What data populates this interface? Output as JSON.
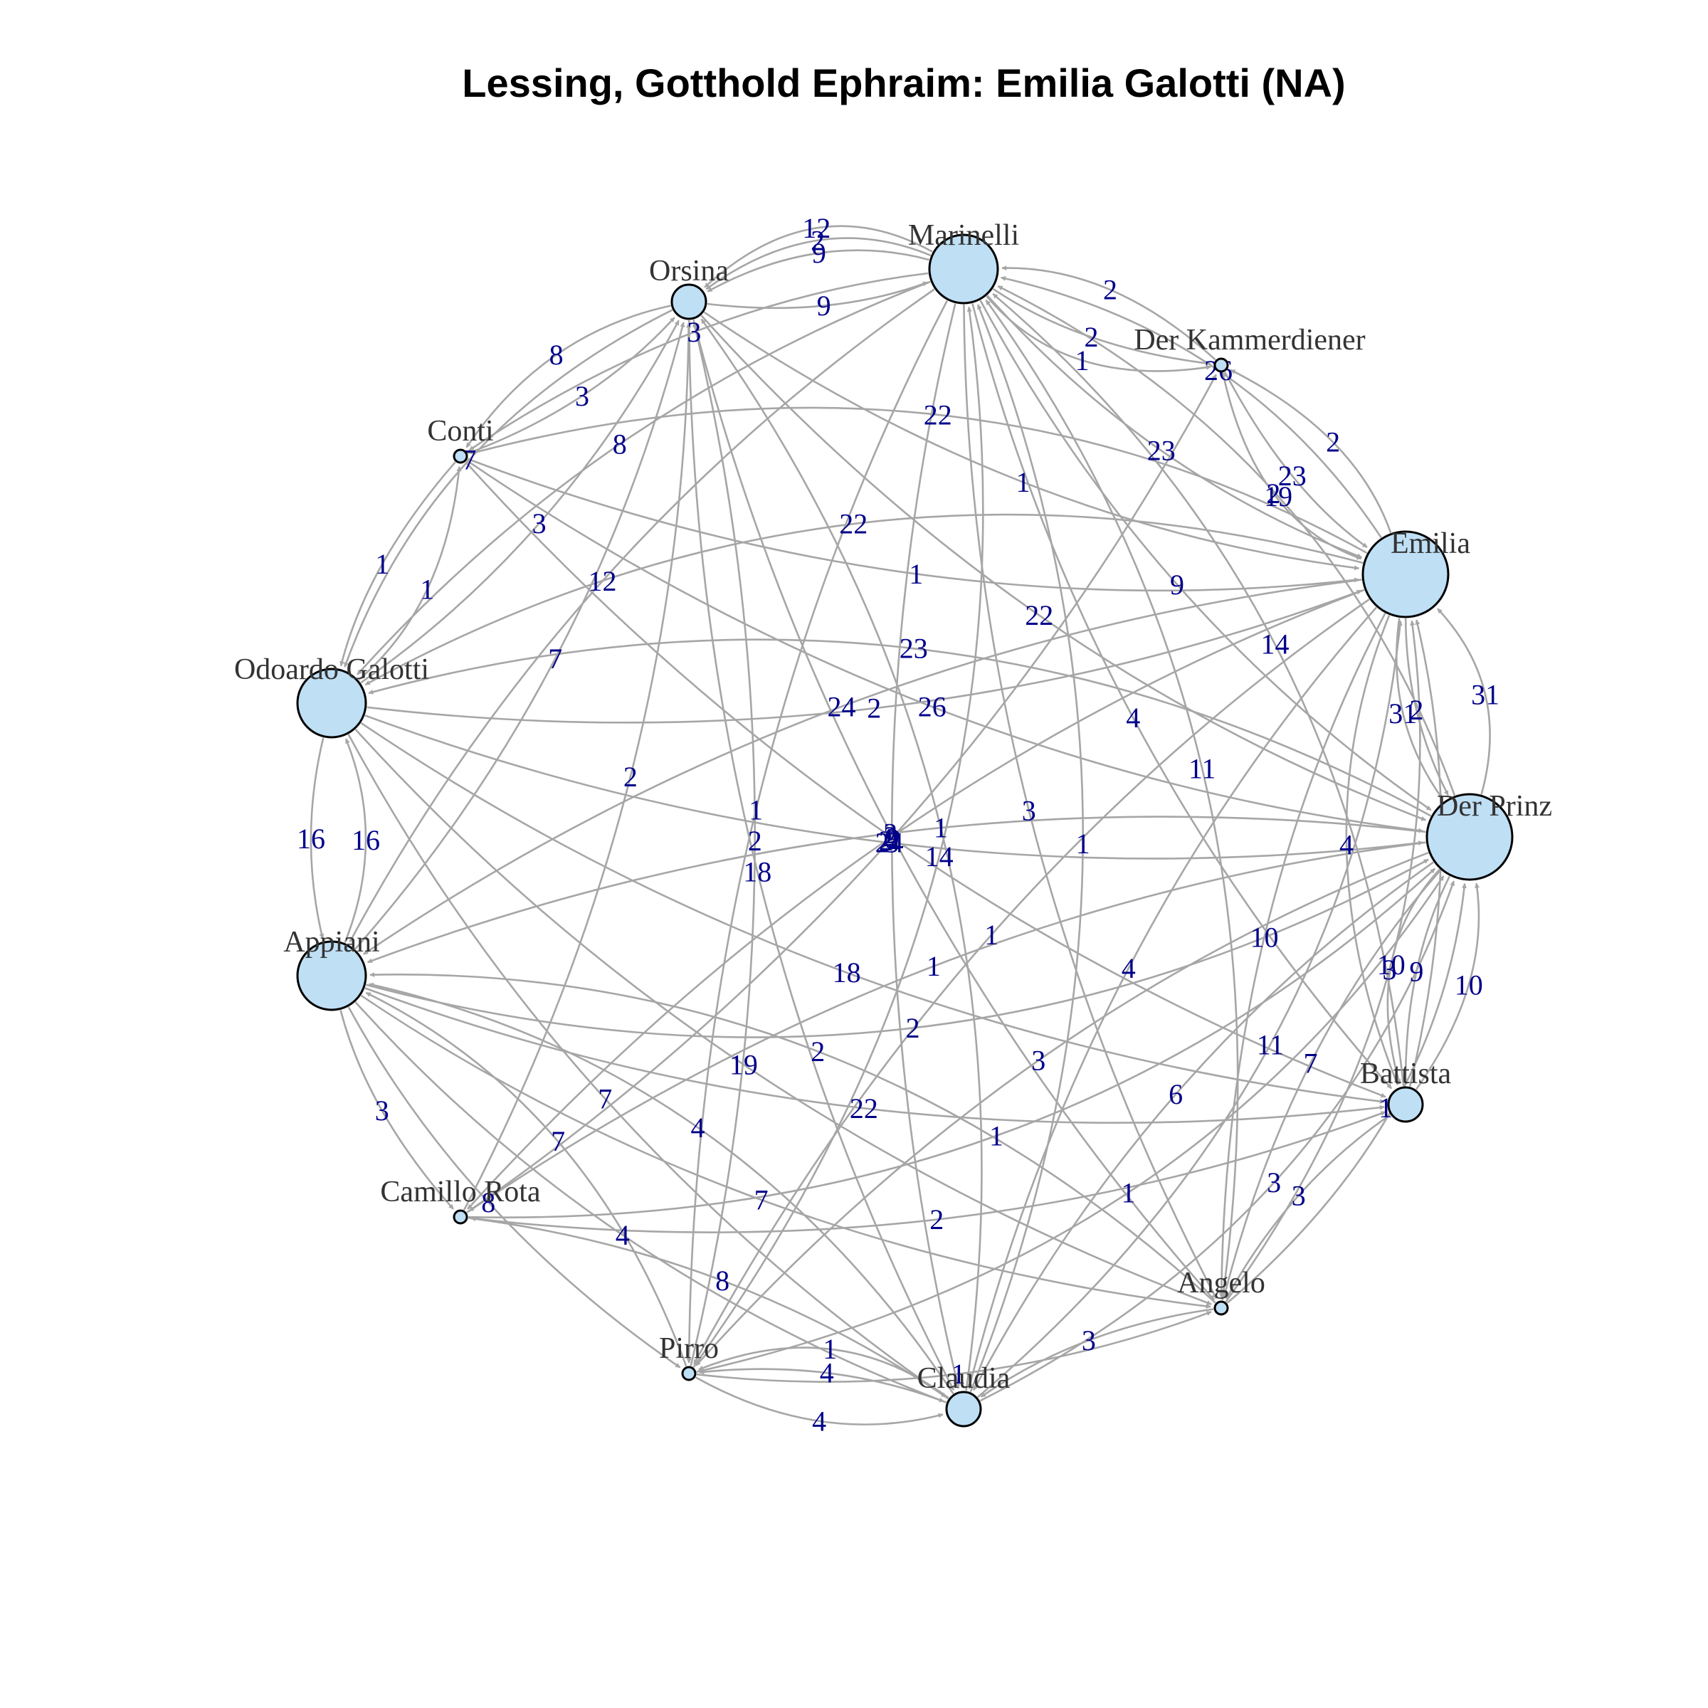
{
  "title": "Lessing, Gotthold Ephraim: Emilia Galotti (NA)",
  "colors": {
    "node_fill": "#bfdff5",
    "edge": "#a6a6a6",
    "edge_label": "#00008b",
    "node_label": "#333333"
  },
  "nodes": [
    {
      "id": "Marinelli",
      "label": "Marinelli",
      "size": "large"
    },
    {
      "id": "Orsina",
      "label": "Orsina",
      "size": "small"
    },
    {
      "id": "Der Kammerdiener",
      "label": "Der Kammerdiener",
      "size": "tiny"
    },
    {
      "id": "Conti",
      "label": "Conti",
      "size": "tiny"
    },
    {
      "id": "Emilia",
      "label": "Emilia",
      "size": "xlarge"
    },
    {
      "id": "Odoardo Galotti",
      "label": "Odoardo Galotti",
      "size": "large"
    },
    {
      "id": "Der Prinz",
      "label": "Der Prinz",
      "size": "xlarge"
    },
    {
      "id": "Appiani",
      "label": "Appiani",
      "size": "large"
    },
    {
      "id": "Battista",
      "label": "Battista",
      "size": "small"
    },
    {
      "id": "Camillo Rota",
      "label": "Camillo Rota",
      "size": "tiny"
    },
    {
      "id": "Angelo",
      "label": "Angelo",
      "size": "tiny"
    },
    {
      "id": "Pirro",
      "label": "Pirro",
      "size": "tiny"
    },
    {
      "id": "Claudia",
      "label": "Claudia",
      "size": "small"
    }
  ],
  "edges": [
    {
      "from": "Orsina",
      "to": "Marinelli",
      "weight": "9"
    },
    {
      "from": "Marinelli",
      "to": "Orsina",
      "weight": "9"
    },
    {
      "from": "Marinelli",
      "to": "Orsina",
      "weight": "2"
    },
    {
      "from": "Marinelli",
      "to": "Der Kammerdiener",
      "weight": "2"
    },
    {
      "from": "Der Kammerdiener",
      "to": "Marinelli",
      "weight": "2"
    },
    {
      "from": "Marinelli",
      "to": "Der Kammerdiener",
      "weight": "1"
    },
    {
      "from": "Conti",
      "to": "Orsina",
      "weight": "3"
    },
    {
      "from": "Orsina",
      "to": "Conti",
      "weight": "8"
    },
    {
      "from": "Odoardo Galotti",
      "to": "Orsina",
      "weight": "3"
    },
    {
      "from": "Orsina",
      "to": "Odoardo Galotti",
      "weight": "7"
    },
    {
      "from": "Conti",
      "to": "Odoardo Galotti",
      "weight": "1"
    },
    {
      "from": "Odoardo Galotti",
      "to": "Conti",
      "weight": "1"
    },
    {
      "from": "Odoardo Galotti",
      "to": "Appiani",
      "weight": "16"
    },
    {
      "from": "Appiani",
      "to": "Odoardo Galotti",
      "weight": "16"
    },
    {
      "from": "Der Kammerdiener",
      "to": "Emilia",
      "weight": "23"
    },
    {
      "from": "Emilia",
      "to": "Der Kammerdiener",
      "weight": "2"
    },
    {
      "from": "Der Kammerdiener",
      "to": "Emilia",
      "weight": "2"
    },
    {
      "from": "Emilia",
      "to": "Der Prinz",
      "weight": "2"
    },
    {
      "from": "Emilia",
      "to": "Der Prinz",
      "weight": "31"
    },
    {
      "from": "Der Prinz",
      "to": "Emilia",
      "weight": "31"
    },
    {
      "from": "Der Prinz",
      "to": "Battista",
      "weight": "9"
    },
    {
      "from": "Battista",
      "to": "Der Prinz",
      "weight": "10"
    },
    {
      "from": "Der Prinz",
      "to": "Battista",
      "weight": "10"
    },
    {
      "from": "Battista",
      "to": "Angelo",
      "weight": "3"
    },
    {
      "from": "Angelo",
      "to": "Claudia",
      "weight": "3"
    },
    {
      "from": "Claudia",
      "to": "Pirro",
      "weight": "4"
    },
    {
      "from": "Pirro",
      "to": "Claudia",
      "weight": "4"
    },
    {
      "from": "Claudia",
      "to": "Pirro",
      "weight": "1"
    },
    {
      "from": "Appiani",
      "to": "Camillo Rota",
      "weight": "3"
    },
    {
      "from": "Marinelli",
      "to": "Orsina",
      "weight": "12"
    },
    {
      "from": "Marinelli",
      "to": "Conti",
      "weight": "3"
    },
    {
      "from": "Marinelli",
      "to": "Odoardo Galotti",
      "weight": "8"
    },
    {
      "from": "Marinelli",
      "to": "Emilia",
      "weight": "23"
    },
    {
      "from": "Marinelli",
      "to": "Der Prinz",
      "weight": "9"
    },
    {
      "from": "Marinelli",
      "to": "Battista",
      "weight": "4"
    },
    {
      "from": "Marinelli",
      "to": "Angelo",
      "weight": "3"
    },
    {
      "from": "Marinelli",
      "to": "Claudia",
      "weight": "3"
    },
    {
      "from": "Marinelli",
      "to": "Pirro",
      "weight": "1"
    },
    {
      "from": "Marinelli",
      "to": "Appiani",
      "weight": "12"
    },
    {
      "from": "Orsina",
      "to": "Der Prinz",
      "weight": "22"
    },
    {
      "from": "Orsina",
      "to": "Emilia",
      "weight": "1"
    },
    {
      "from": "Orsina",
      "to": "Angelo",
      "weight": "2"
    },
    {
      "from": "Orsina",
      "to": "Claudia",
      "weight": "18"
    },
    {
      "from": "Conti",
      "to": "Der Prinz",
      "weight": "26"
    },
    {
      "from": "Conti",
      "to": "Emilia",
      "weight": "1"
    },
    {
      "from": "Emilia",
      "to": "Conti",
      "weight": "22"
    },
    {
      "from": "Conti",
      "to": "Battista",
      "weight": "2"
    },
    {
      "from": "Odoardo Galotti",
      "to": "Der Prinz",
      "weight": "24"
    },
    {
      "from": "Odoardo Galotti",
      "to": "Emilia",
      "weight": "2"
    },
    {
      "from": "Odoardo Galotti",
      "to": "Battista",
      "weight": "18"
    },
    {
      "from": "Odoardo Galotti",
      "to": "Angelo",
      "weight": "19"
    },
    {
      "from": "Odoardo Galotti",
      "to": "Claudia",
      "weight": "7"
    },
    {
      "from": "Emilia",
      "to": "Odoardo Galotti",
      "weight": "22"
    },
    {
      "from": "Der Prinz",
      "to": "Odoardo Galotti",
      "weight": "23"
    },
    {
      "from": "Emilia",
      "to": "Appiani",
      "weight": "24"
    },
    {
      "from": "Der Prinz",
      "to": "Appiani",
      "weight": "3"
    },
    {
      "from": "Emilia",
      "to": "Pirro",
      "weight": "1"
    },
    {
      "from": "Emilia",
      "to": "Claudia",
      "weight": "4"
    },
    {
      "from": "Emilia",
      "to": "Camillo Rota",
      "weight": "2"
    },
    {
      "from": "Emilia",
      "to": "Angelo",
      "weight": "10"
    },
    {
      "from": "Der Prinz",
      "to": "Camillo Rota",
      "weight": "1"
    },
    {
      "from": "Der Prinz",
      "to": "Pirro",
      "weight": "3"
    },
    {
      "from": "Der Prinz",
      "to": "Claudia",
      "weight": "6"
    },
    {
      "from": "Der Prinz",
      "to": "Angelo",
      "weight": "7"
    },
    {
      "from": "Appiani",
      "to": "Battista",
      "weight": "22"
    },
    {
      "from": "Appiani",
      "to": "Angelo",
      "weight": "7"
    },
    {
      "from": "Appiani",
      "to": "Claudia",
      "weight": "4"
    },
    {
      "from": "Appiani",
      "to": "Pirro",
      "weight": "8"
    },
    {
      "from": "Camillo Rota",
      "to": "Battista",
      "weight": "2"
    },
    {
      "from": "Camillo Rota",
      "to": "Der Prinz",
      "weight": "1"
    },
    {
      "from": "Claudia",
      "to": "Emilia",
      "weight": "11"
    },
    {
      "from": "Claudia",
      "to": "Der Prinz",
      "weight": "3"
    },
    {
      "from": "Angelo",
      "to": "Emilia",
      "weight": "3"
    },
    {
      "from": "Angelo",
      "to": "Der Prinz",
      "weight": "10"
    },
    {
      "from": "Pirro",
      "to": "Angelo",
      "weight": "1"
    },
    {
      "from": "Pirro",
      "to": "Marinelli",
      "weight": "14"
    },
    {
      "from": "Claudia",
      "to": "Marinelli",
      "weight": "1"
    },
    {
      "from": "Angelo",
      "to": "Marinelli",
      "weight": "11"
    },
    {
      "from": "Battista",
      "to": "Marinelli",
      "weight": "14"
    },
    {
      "from": "Battista",
      "to": "Emilia",
      "weight": "4"
    },
    {
      "from": "Camillo Rota",
      "to": "Der Kammerdiener",
      "weight": "9"
    },
    {
      "from": "Camillo Rota",
      "to": "Orsina",
      "weight": "2"
    },
    {
      "from": "Pirro",
      "to": "Orsina",
      "weight": "2"
    },
    {
      "from": "Claudia",
      "to": "Orsina",
      "weight": "1"
    },
    {
      "from": "Appiani",
      "to": "Orsina",
      "weight": "7"
    },
    {
      "from": "Appiani",
      "to": "Der Prinz",
      "weight": "2"
    },
    {
      "from": "Der Prinz",
      "to": "Marinelli",
      "weight": "19"
    },
    {
      "from": "Emilia",
      "to": "Marinelli",
      "weight": "26"
    },
    {
      "from": "Emilia",
      "to": "Battista",
      "weight": "4"
    },
    {
      "from": "Claudia",
      "to": "Appiani",
      "weight": "4"
    },
    {
      "from": "Pirro",
      "to": "Appiani",
      "weight": "7"
    },
    {
      "from": "Claudia",
      "to": "Camillo Rota",
      "weight": "8"
    },
    {
      "from": "Angelo",
      "to": "Appiani",
      "weight": "2"
    },
    {
      "from": "Pirro",
      "to": "Der Prinz",
      "weight": "1"
    }
  ]
}
